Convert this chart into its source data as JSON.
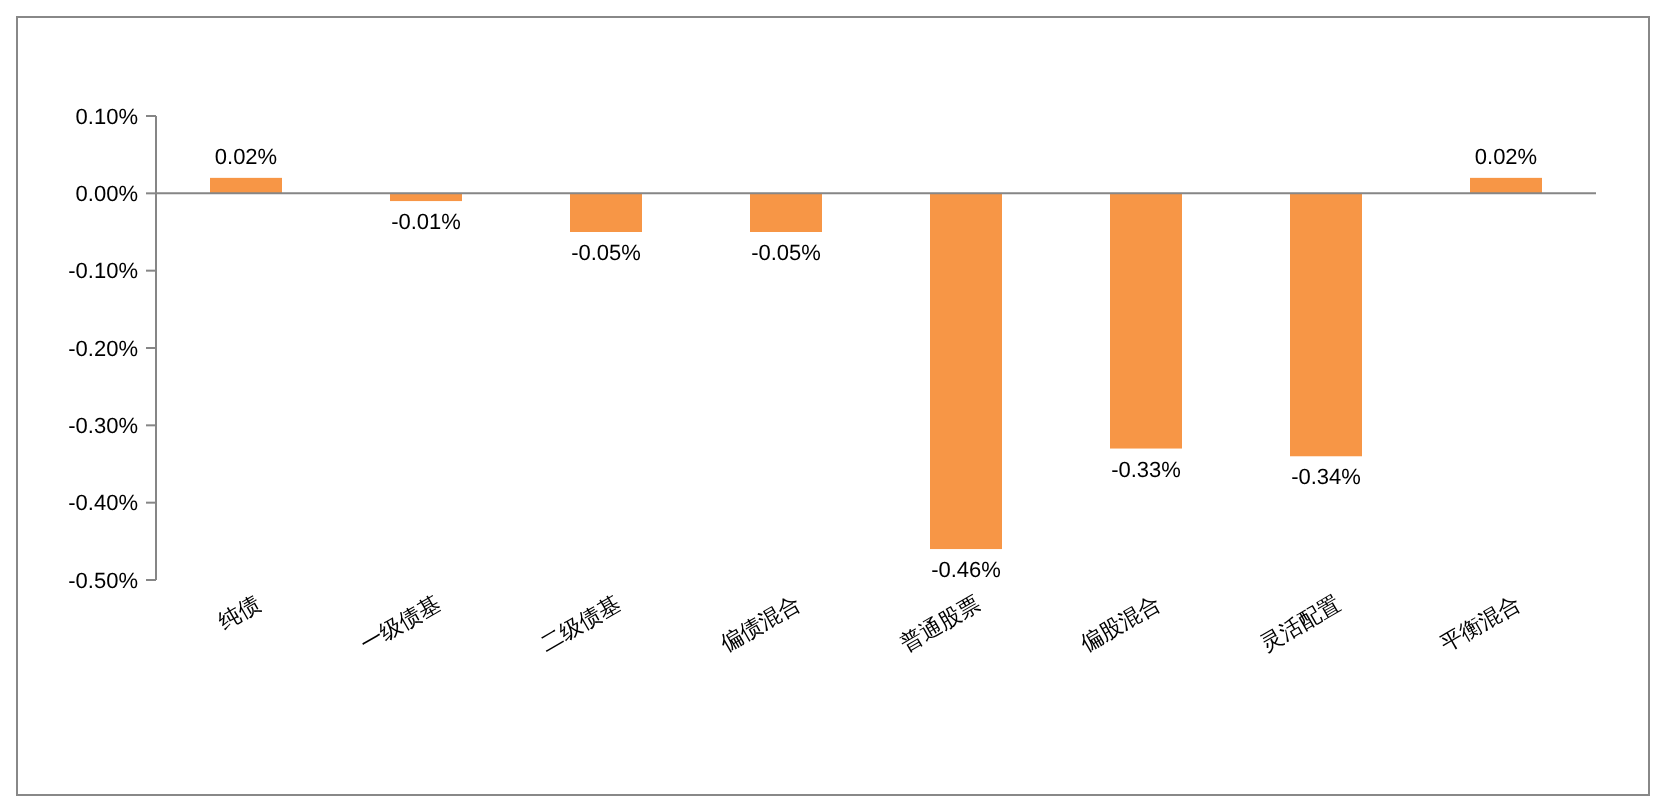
{
  "chart_data": {
    "type": "bar",
    "categories": [
      "纯债",
      "一级债基",
      "二级债基",
      "偏债混合",
      "普通股票",
      "偏股混合",
      "灵活配置",
      "平衡混合"
    ],
    "values": [
      0.02,
      -0.01,
      -0.05,
      -0.05,
      -0.46,
      -0.33,
      -0.34,
      0.02
    ],
    "value_labels": [
      "0.02%",
      "-0.01%",
      "-0.05%",
      "-0.05%",
      "-0.46%",
      "-0.33%",
      "-0.34%",
      "0.02%"
    ],
    "color": "#f79646",
    "ylim": [
      -0.5,
      0.1
    ],
    "yticks": [
      {
        "value": 0.1,
        "label": "0.10%"
      },
      {
        "value": 0,
        "label": "0.00%"
      },
      {
        "value": -0.1,
        "label": "-0.10%"
      },
      {
        "value": -0.2,
        "label": "-0.20%"
      },
      {
        "value": -0.3,
        "label": "-0.30%"
      },
      {
        "value": -0.4,
        "label": "-0.40%"
      },
      {
        "value": -0.5,
        "label": "-0.50%"
      }
    ],
    "title": null
  }
}
